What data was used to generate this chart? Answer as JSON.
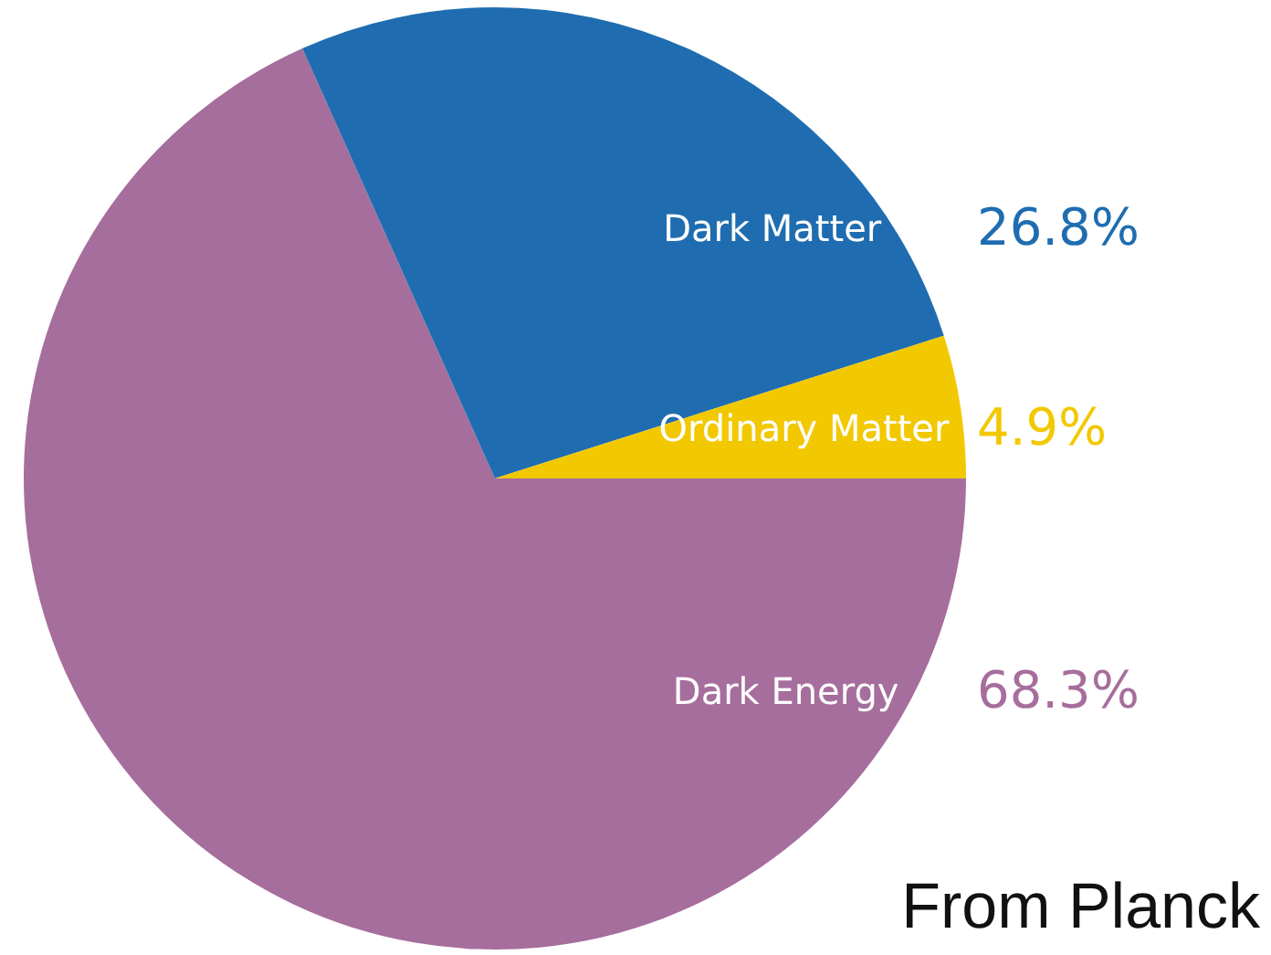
{
  "chart_data": {
    "type": "pie",
    "categories": [
      "Dark Energy",
      "Dark Matter",
      "Ordinary Matter"
    ],
    "values": [
      68.3,
      26.8,
      4.9
    ],
    "colors": [
      "#a66e9c",
      "#1f6db0",
      "#f2c800"
    ],
    "value_labels": [
      "68.3%",
      "26.8%",
      "4.9%"
    ],
    "legend": false,
    "annotations": [
      "From Planck"
    ]
  }
}
